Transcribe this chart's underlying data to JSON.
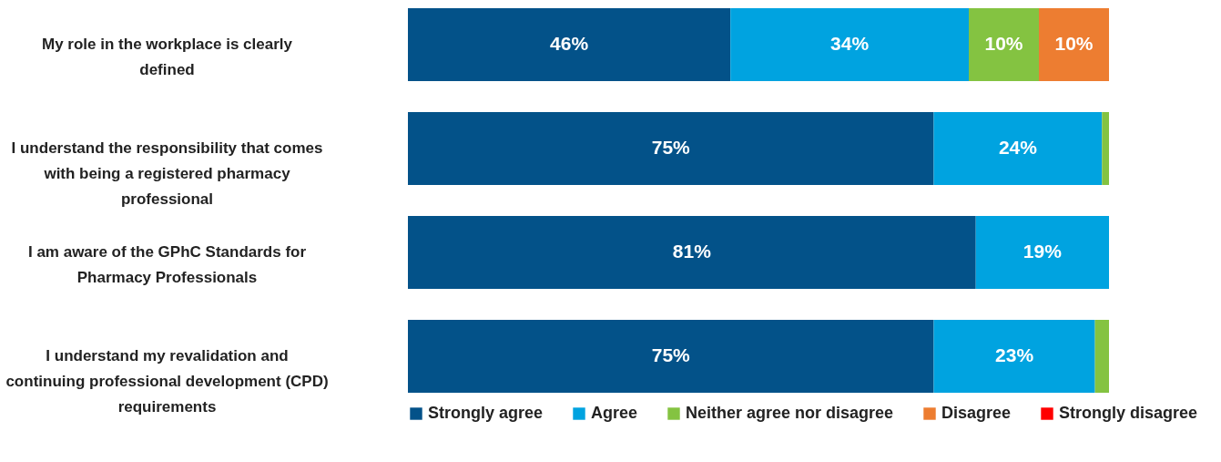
{
  "chart_data": {
    "type": "bar",
    "orientation": "horizontal",
    "stacked": true,
    "xlim": [
      0,
      100
    ],
    "categories": [
      "My role in the workplace is clearly defined",
      "I understand the responsibility that comes with being a registered pharmacy professional",
      "I am aware of the GPhC Standards for Pharmacy Professionals",
      "I understand my revalidation and continuing professional development (CPD) requirements"
    ],
    "series": [
      {
        "name": "Strongly agree",
        "color": "#035289",
        "values": [
          46,
          75,
          81,
          75
        ],
        "value_labels": [
          "46%",
          "75%",
          "81%",
          "75%"
        ]
      },
      {
        "name": "Agree",
        "color": "#00a3e0",
        "values": [
          34,
          24,
          19,
          23
        ],
        "value_labels": [
          "34%",
          "24%",
          "19%",
          "23%"
        ]
      },
      {
        "name": "Neither agree nor disagree",
        "color": "#84c341",
        "values": [
          10,
          1,
          0,
          2
        ],
        "value_labels": [
          "10%",
          null,
          null,
          null
        ]
      },
      {
        "name": "Disagree",
        "color": "#ed7d31",
        "values": [
          10,
          0,
          0,
          0
        ],
        "value_labels": [
          "10%",
          null,
          null,
          null
        ]
      },
      {
        "name": "Strongly disagree",
        "color": "#ff0000",
        "values": [
          0,
          0,
          0,
          0
        ],
        "value_labels": [
          null,
          null,
          null,
          null
        ]
      }
    ],
    "legend": "bottom",
    "tick_labels": "y"
  }
}
